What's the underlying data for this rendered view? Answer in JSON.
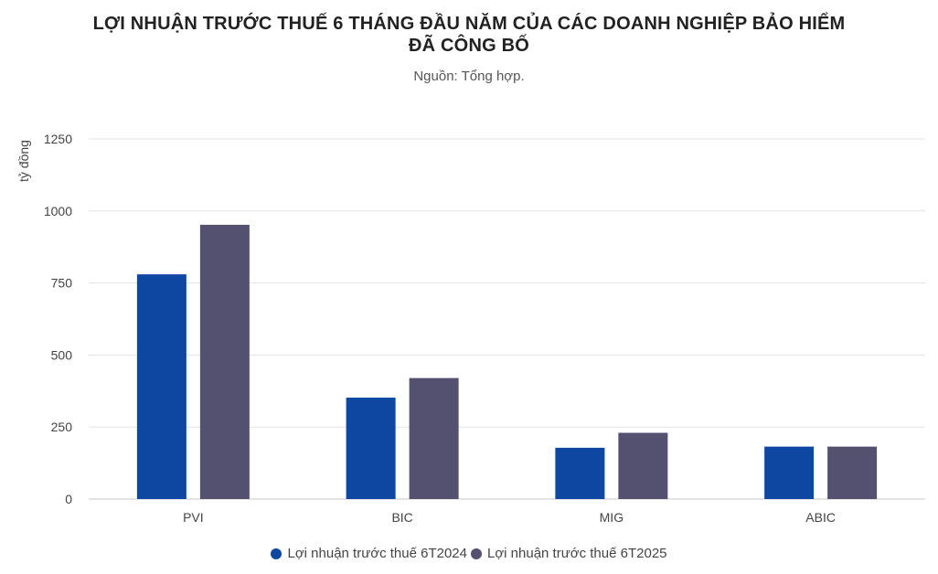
{
  "page": {
    "title_line1": "LỢI NHUẬN TRƯỚC THUẾ 6 THÁNG ĐẦU NĂM CỦA CÁC DOANH NGHIỆP BẢO HIỂM",
    "title_line2": "ĐÃ CÔNG BỐ",
    "subtitle": "Nguồn: Tổng hợp."
  },
  "chart_data": {
    "type": "bar",
    "title": "LỢI NHUẬN TRƯỚC THUẾ 6 THÁNG ĐẦU NĂM CỦA CÁC DOANH NGHIỆP BẢO HIỂM ĐÃ CÔNG BỐ",
    "subtitle": "Nguồn: Tổng hợp.",
    "ylabel": "tỷ đồng",
    "xlabel": "",
    "categories": [
      "PVI",
      "BIC",
      "MIG",
      "ABIC"
    ],
    "series": [
      {
        "name": "Lợi nhuận trước thuế 6T2024",
        "color": "#0d47a1",
        "values": [
          780,
          352,
          178,
          182
        ]
      },
      {
        "name": "Lợi nhuận trước thuế 6T2025",
        "color": "#54506f",
        "values": [
          952,
          420,
          230,
          182
        ]
      }
    ],
    "ylim": [
      0,
      1250
    ],
    "yticks": [
      "0",
      "250",
      "500",
      "750",
      "1000",
      "1250"
    ],
    "grid": true,
    "legend_position": "bottom"
  }
}
